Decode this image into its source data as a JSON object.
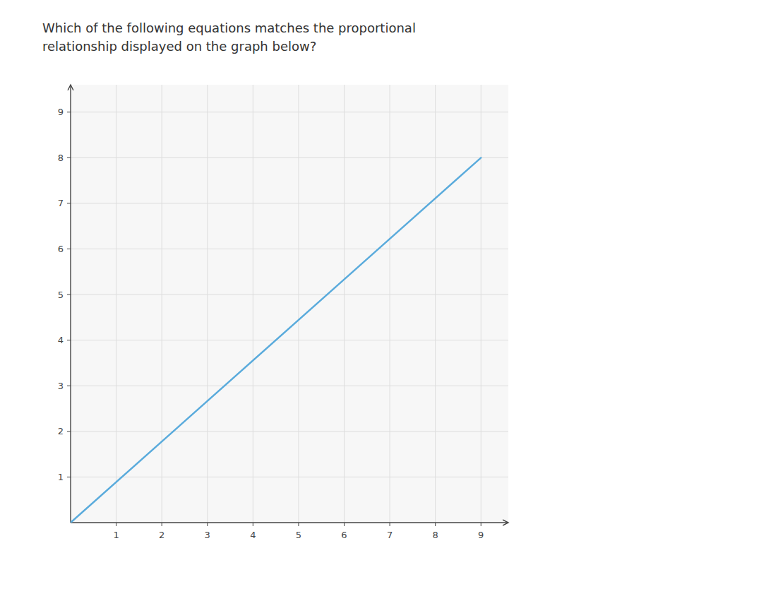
{
  "chart_data": {
    "type": "line",
    "title": [
      "Which of the following equations matches the proportional",
      "relationship displayed on the graph below?"
    ],
    "x": [
      0,
      9
    ],
    "values": [
      0,
      8
    ],
    "color": "#5aabdc",
    "xlim": [
      0,
      9.6
    ],
    "ylim": [
      0,
      9.6
    ],
    "xticks": [
      1,
      2,
      3,
      4,
      5,
      6,
      7,
      8,
      9
    ],
    "yticks": [
      1,
      2,
      3,
      4,
      5,
      6,
      7,
      8,
      9
    ],
    "grid": true
  }
}
